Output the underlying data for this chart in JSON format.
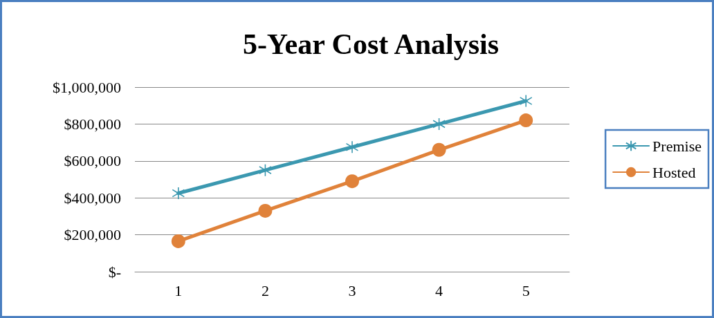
{
  "chart_data": {
    "type": "line",
    "title": "5-Year Cost Analysis",
    "categories": [
      "1",
      "2",
      "3",
      "4",
      "5"
    ],
    "series": [
      {
        "name": "Premise",
        "color": "#3b98b0",
        "marker": "cross",
        "values": [
          425000,
          550000,
          675000,
          800000,
          925000
        ]
      },
      {
        "name": "Hosted",
        "color": "#e0823a",
        "marker": "circle",
        "values": [
          165000,
          330000,
          490000,
          660000,
          820000
        ]
      }
    ],
    "ylim": [
      0,
      1000000
    ],
    "yticks": [
      {
        "value": 0,
        "label": "$-"
      },
      {
        "value": 200000,
        "label": "$200,000"
      },
      {
        "value": 400000,
        "label": "$400,000"
      },
      {
        "value": 600000,
        "label": "$600,000"
      },
      {
        "value": 800000,
        "label": "$800,000"
      },
      {
        "value": 1000000,
        "label": "$1,000,000"
      }
    ],
    "grid": "y",
    "legend": "right",
    "line_style": "solid"
  }
}
